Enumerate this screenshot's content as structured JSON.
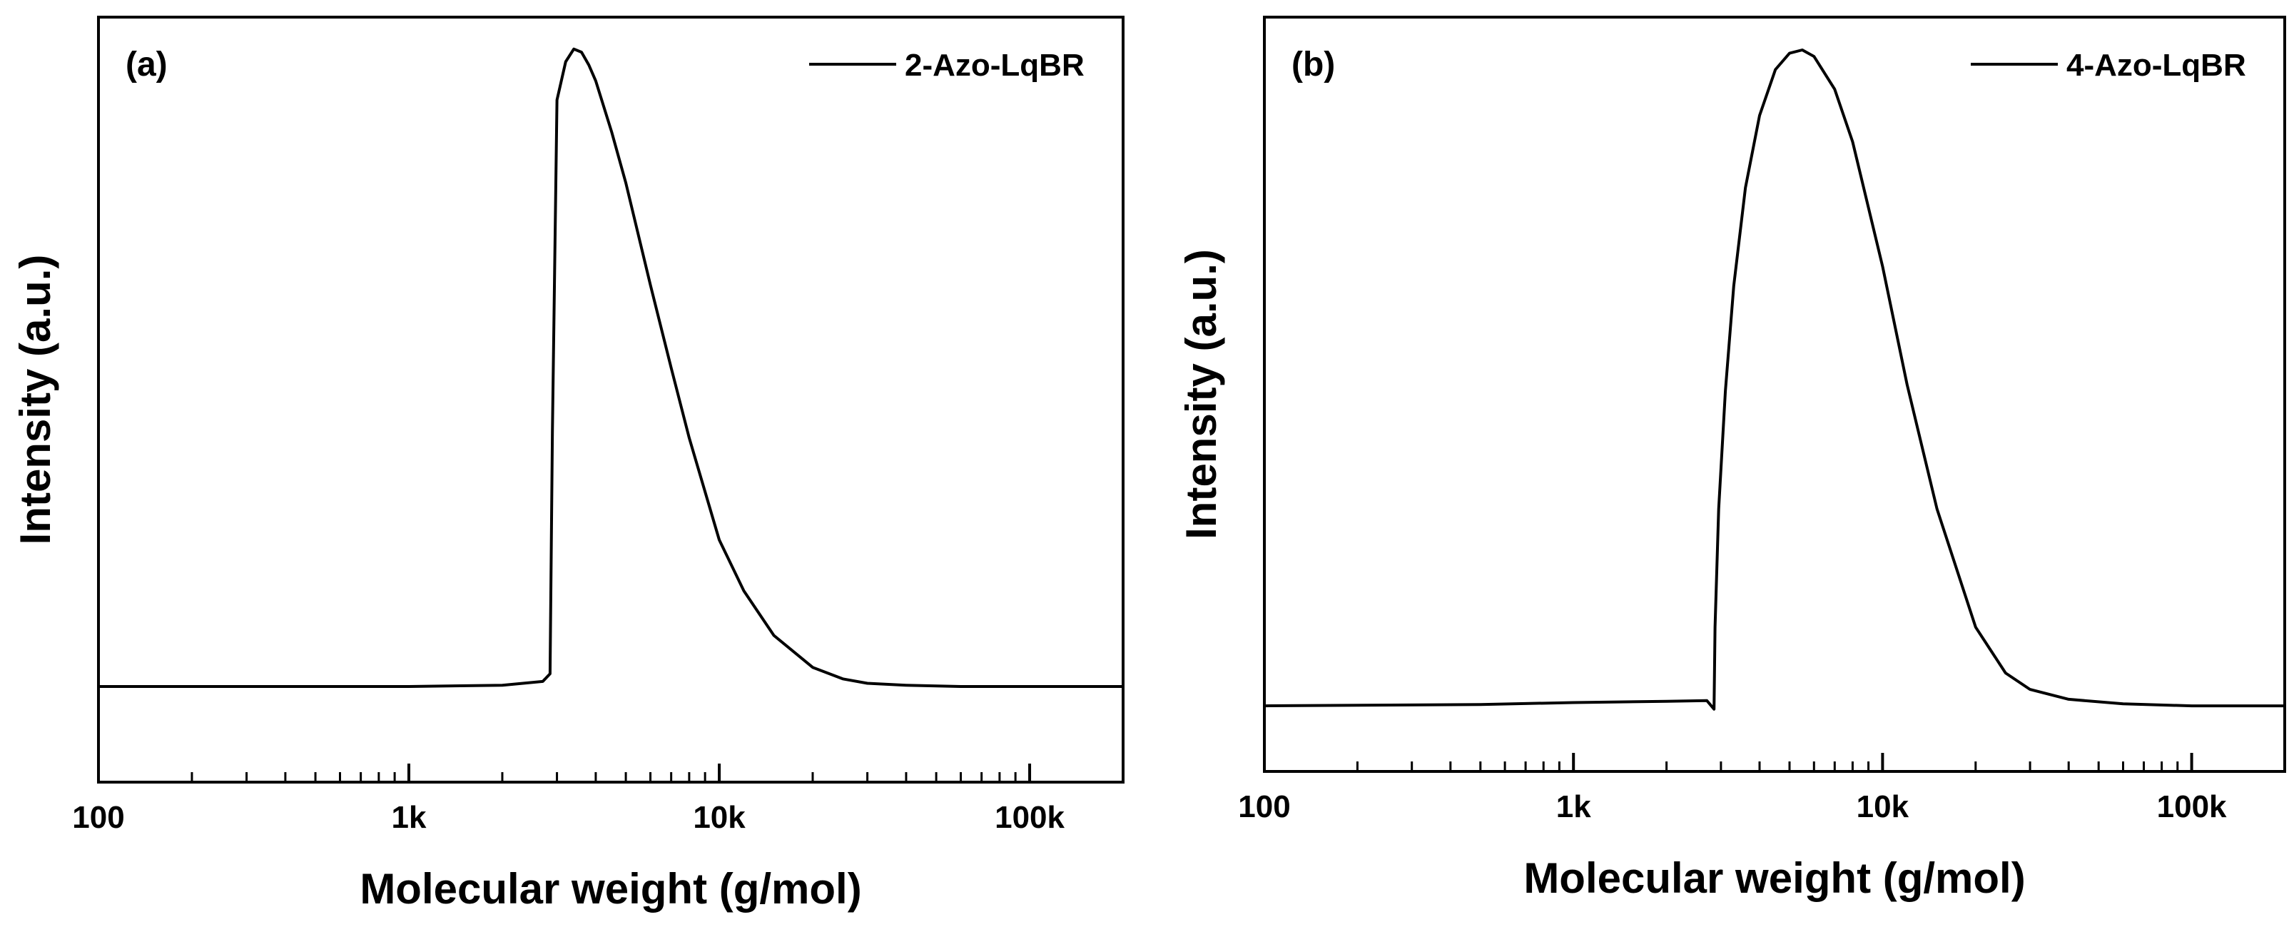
{
  "figure": {
    "colors": {
      "line": "#000000",
      "background": "#ffffff"
    }
  },
  "chart_data": [
    {
      "type": "line",
      "panel_label": "(a)",
      "xscale": "log",
      "xlim": [
        100,
        200000
      ],
      "ylim": [
        -0.15,
        1.05
      ],
      "xlabel": "Molecular weight (g/mol)",
      "ylabel": "Intensity (a.u.)",
      "x_ticks": [
        100,
        1000,
        10000,
        100000
      ],
      "x_tick_labels": [
        "100",
        "1k",
        "10k",
        "100k"
      ],
      "legend": {
        "label": "2-Azo-LqBR",
        "position": "top-right"
      },
      "series": [
        {
          "name": "2-Azo-LqBR",
          "x": [
            100,
            500,
            1000,
            2000,
            2700,
            2850,
            2900,
            3000,
            3200,
            3400,
            3600,
            3800,
            4000,
            4500,
            5000,
            6000,
            7000,
            8000,
            10000,
            12000,
            15000,
            20000,
            25000,
            30000,
            40000,
            60000,
            100000,
            200000
          ],
          "y": [
            0.0,
            0.0,
            0.0,
            0.002,
            0.008,
            0.02,
            0.4,
            0.92,
            0.98,
            1.0,
            0.995,
            0.975,
            0.95,
            0.87,
            0.79,
            0.63,
            0.5,
            0.39,
            0.23,
            0.15,
            0.08,
            0.03,
            0.012,
            0.005,
            0.002,
            0.0,
            0.0,
            0.0
          ]
        }
      ]
    },
    {
      "type": "line",
      "panel_label": "(b)",
      "xscale": "log",
      "xlim": [
        100,
        200000
      ],
      "ylim": [
        -0.1,
        1.05
      ],
      "xlabel": "Molecular weight (g/mol)",
      "ylabel": "Intensity (a.u.)",
      "x_ticks": [
        100,
        1000,
        10000,
        100000
      ],
      "x_tick_labels": [
        "100",
        "1k",
        "10k",
        "100k"
      ],
      "legend": {
        "label": "4-Azo-LqBR",
        "position": "top-right"
      },
      "series": [
        {
          "name": "4-Azo-LqBR",
          "x": [
            100,
            500,
            1000,
            2000,
            2700,
            2850,
            2870,
            2950,
            3100,
            3300,
            3600,
            4000,
            4500,
            5000,
            5500,
            6000,
            7000,
            8000,
            10000,
            12000,
            15000,
            20000,
            25000,
            30000,
            40000,
            60000,
            100000,
            200000
          ],
          "y": [
            0.0,
            0.002,
            0.005,
            0.007,
            0.008,
            -0.005,
            0.12,
            0.3,
            0.48,
            0.64,
            0.79,
            0.9,
            0.97,
            0.995,
            1.0,
            0.99,
            0.94,
            0.86,
            0.67,
            0.49,
            0.3,
            0.12,
            0.05,
            0.025,
            0.01,
            0.003,
            0.0,
            0.0
          ]
        }
      ]
    }
  ]
}
